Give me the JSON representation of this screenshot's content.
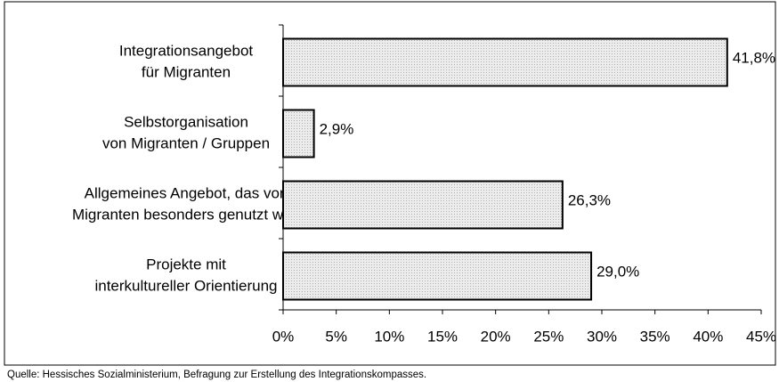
{
  "chart_data": {
    "type": "bar",
    "orientation": "horizontal",
    "categories": [
      [
        "Integrationsangebot",
        "für Migranten"
      ],
      [
        "Selbstorganisation",
        "von Migranten / Gruppen"
      ],
      [
        "Allgemeines Angebot, das von",
        "Migranten besonders genutzt wird"
      ],
      [
        "Projekte mit",
        "interkultureller Orientierung"
      ]
    ],
    "values": [
      41.8,
      2.9,
      26.3,
      29.0
    ],
    "value_labels": [
      "41,8%",
      "2,9%",
      "26,3%",
      "29,0%"
    ],
    "color": "#e4e4e4",
    "xlim": [
      0,
      45
    ],
    "xticks": [
      {
        "value": 0,
        "label": "0%"
      },
      {
        "value": 5,
        "label": "5%"
      },
      {
        "value": 10,
        "label": "10%"
      },
      {
        "value": 15,
        "label": "15%"
      },
      {
        "value": 20,
        "label": "20%"
      },
      {
        "value": 25,
        "label": "25%"
      },
      {
        "value": 30,
        "label": "30%"
      },
      {
        "value": 35,
        "label": "35%"
      },
      {
        "value": 40,
        "label": "40%"
      },
      {
        "value": 45,
        "label": "45%"
      }
    ],
    "grid": false,
    "source": "Quelle: Hessisches Sozialministerium, Befragung zur Erstellung des Integrationskompasses."
  }
}
